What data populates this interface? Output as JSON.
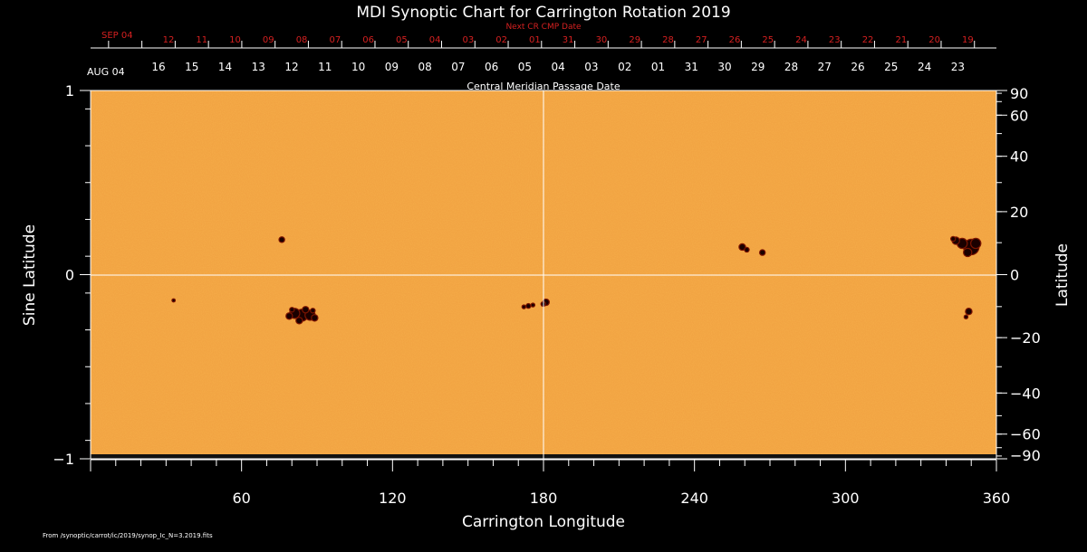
{
  "chart_data": {
    "type": "heatmap",
    "title": "MDI Synoptic Chart for Carrington Rotation 2019",
    "xlabel": "Carrington Longitude",
    "ylabel_left": "Sine Latitude",
    "ylabel_right": "Latitude",
    "top_axis_label": "Central Meridian Passage Date",
    "next_cr_label": "Next CR CMP Date",
    "xlim": [
      0,
      360
    ],
    "ylim": [
      -1,
      1
    ],
    "x_ticks": [
      60,
      120,
      180,
      240,
      300,
      360
    ],
    "y_ticks_left": [
      1,
      0,
      -1
    ],
    "y_tick_labels_left": [
      "1",
      "0",
      "−1"
    ],
    "y_ticks_right_deg": [
      90,
      60,
      40,
      20,
      0,
      -20,
      -40,
      -60,
      -90
    ],
    "y_tick_labels_right": [
      "90",
      "60",
      "40",
      "20",
      "0",
      "−20",
      "−40",
      "−60",
      "−90"
    ],
    "cmp_month_label": "AUG 04",
    "cmp_dates": [
      "16",
      "15",
      "14",
      "13",
      "12",
      "11",
      "10",
      "09",
      "08",
      "07",
      "06",
      "05",
      "04",
      "03",
      "02",
      "01",
      "31",
      "30",
      "29",
      "28",
      "27",
      "26",
      "25",
      "24",
      "23"
    ],
    "next_month_label": "SEP 04",
    "next_cmp_dates": [
      "12",
      "11",
      "10",
      "09",
      "08",
      "07",
      "06",
      "05",
      "04",
      "03",
      "02",
      "01",
      "31",
      "30",
      "29",
      "28",
      "27",
      "26",
      "25",
      "24",
      "23",
      "22",
      "21",
      "20",
      "19"
    ],
    "grid": "lines at longitude 180 and sine latitude 0",
    "colors": {
      "background": "#f0a040",
      "spots": "#1a0000",
      "grid": "#ffffff",
      "secondary_axis": "#d42020"
    },
    "sunspot_groups": [
      {
        "lon": 84,
        "sinlat": -0.22
      },
      {
        "lon": 76,
        "sinlat": 0.19
      },
      {
        "lon": 33,
        "sinlat": -0.14
      },
      {
        "lon": 174,
        "sinlat": -0.17
      },
      {
        "lon": 181,
        "sinlat": -0.15
      },
      {
        "lon": 259,
        "sinlat": 0.15
      },
      {
        "lon": 267,
        "sinlat": 0.12
      },
      {
        "lon": 350,
        "sinlat": 0.15
      },
      {
        "lon": 349,
        "sinlat": -0.2
      }
    ]
  },
  "footer": "From /synoptic/carrot/ic/2019/synop_Ic_N=3.2019.fits"
}
